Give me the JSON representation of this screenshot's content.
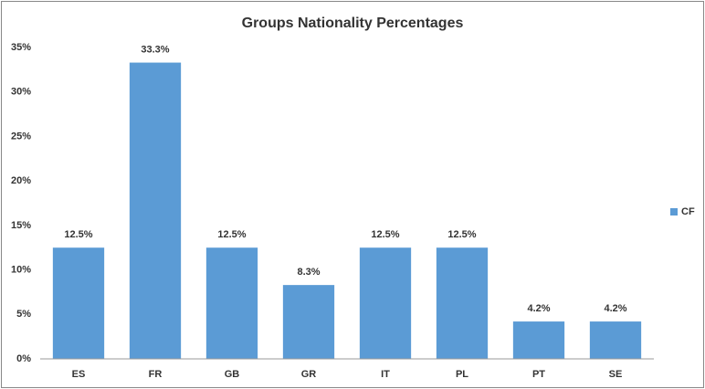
{
  "chart_data": {
    "type": "bar",
    "title": "Groups Nationality Percentages",
    "categories": [
      "ES",
      "FR",
      "GB",
      "GR",
      "IT",
      "PL",
      "PT",
      "SE"
    ],
    "series": [
      {
        "name": "CF",
        "color": "#5b9bd5",
        "values": [
          12.5,
          33.3,
          12.5,
          8.3,
          12.5,
          12.5,
          4.2,
          4.2
        ],
        "value_labels": [
          "12.5%",
          "33.3%",
          "12.5%",
          "8.3%",
          "12.5%",
          "12.5%",
          "4.2%",
          "4.2%"
        ]
      }
    ],
    "ylim": [
      0,
      35
    ],
    "yticks": [
      {
        "value": 0,
        "label": "0%"
      },
      {
        "value": 5,
        "label": "5%"
      },
      {
        "value": 10,
        "label": "10%"
      },
      {
        "value": 15,
        "label": "15%"
      },
      {
        "value": 20,
        "label": "20%"
      },
      {
        "value": 25,
        "label": "25%"
      },
      {
        "value": 30,
        "label": "30%"
      },
      {
        "value": 35,
        "label": "35%"
      }
    ],
    "grid": false,
    "legend": "right"
  }
}
